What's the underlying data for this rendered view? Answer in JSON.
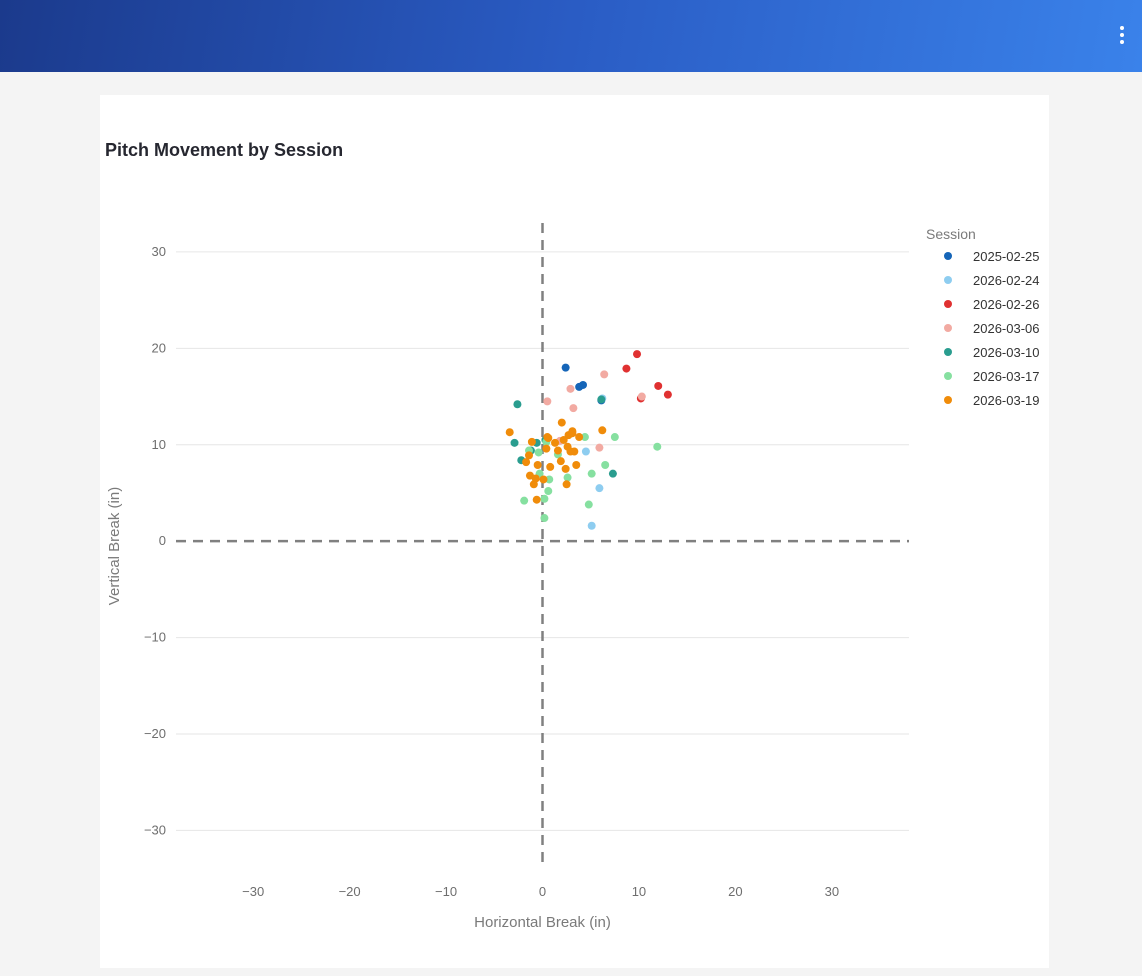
{
  "header": {
    "menu_icon": "kebab-menu-icon"
  },
  "chart_data": {
    "type": "scatter",
    "title": "Pitch Movement by Session",
    "xlabel": "Horizontal Break (in)",
    "ylabel": "Vertical Break (in)",
    "xlim": [
      -38,
      38
    ],
    "ylim": [
      -34,
      33
    ],
    "xticks": [
      -30,
      -20,
      -10,
      0,
      10,
      20,
      30
    ],
    "yticks": [
      30,
      20,
      10,
      0,
      -10,
      -20,
      -30
    ],
    "xtick_labels": [
      "−30",
      "−20",
      "−10",
      "0",
      "10",
      "20",
      "30"
    ],
    "ytick_labels": [
      "30",
      "20",
      "10",
      "0",
      "−10",
      "−20",
      "−30"
    ],
    "grid": true,
    "zero_lines": "dashed",
    "legend": {
      "title": "Session",
      "position": "right"
    },
    "series": [
      {
        "name": "2025-02-25",
        "color": "#1565b8",
        "x": [
          2.4,
          3.8,
          4.2,
          6.1
        ],
        "y": [
          18.0,
          16.0,
          16.2,
          14.6
        ]
      },
      {
        "name": "2026-02-24",
        "color": "#8ecdf0",
        "x": [
          4.5,
          5.9,
          5.1,
          6.2
        ],
        "y": [
          9.3,
          5.5,
          1.6,
          14.8
        ]
      },
      {
        "name": "2026-02-26",
        "color": "#e03131",
        "x": [
          9.8,
          8.7,
          12.0,
          13.0,
          10.2
        ],
        "y": [
          19.4,
          17.9,
          16.1,
          15.2,
          14.8
        ]
      },
      {
        "name": "2026-03-06",
        "color": "#f2aaa2",
        "x": [
          0.5,
          2.9,
          6.4,
          3.2,
          10.3,
          5.9,
          1.8
        ],
        "y": [
          14.5,
          15.8,
          17.3,
          13.8,
          15.0,
          9.7,
          10.4
        ]
      },
      {
        "name": "2026-03-10",
        "color": "#2a9d8f",
        "x": [
          -2.6,
          -2.9,
          -0.6,
          -2.2,
          6.1,
          7.3,
          -1.2,
          0.3
        ],
        "y": [
          14.2,
          10.2,
          10.2,
          8.4,
          14.7,
          7.0,
          9.4,
          10.5
        ]
      },
      {
        "name": "2026-03-17",
        "color": "#86e0a0",
        "x": [
          -1.9,
          0.2,
          0.6,
          4.8,
          0.7,
          11.9,
          7.5,
          6.5,
          5.1,
          -1.4,
          1.6,
          0.4,
          -0.4,
          4.4,
          0.2,
          2.6,
          -0.3
        ],
        "y": [
          4.2,
          2.4,
          5.2,
          3.8,
          6.4,
          9.8,
          10.8,
          7.9,
          7.0,
          9.4,
          9.0,
          10.3,
          9.2,
          10.8,
          4.4,
          6.6,
          7.0
        ]
      },
      {
        "name": "2026-03-19",
        "color": "#f08c0a",
        "x": [
          -3.4,
          -1.7,
          -1.3,
          -0.7,
          0.5,
          2.0,
          2.7,
          3.1,
          3.8,
          1.9,
          2.4,
          3.3,
          0.8,
          1.6,
          2.2,
          2.6,
          3.5,
          0.1,
          -0.6,
          -1.1,
          -0.9,
          0.4,
          1.3,
          2.9,
          6.2,
          -0.5,
          2.5,
          -1.4,
          0.6,
          3.1
        ],
        "y": [
          11.3,
          8.2,
          6.8,
          6.5,
          10.8,
          12.3,
          11.0,
          11.4,
          10.8,
          8.3,
          7.5,
          9.3,
          7.7,
          9.4,
          10.5,
          9.8,
          7.9,
          6.4,
          4.3,
          10.3,
          5.9,
          9.6,
          10.2,
          9.3,
          11.5,
          7.9,
          5.9,
          8.9,
          10.7,
          11.2
        ]
      }
    ]
  }
}
